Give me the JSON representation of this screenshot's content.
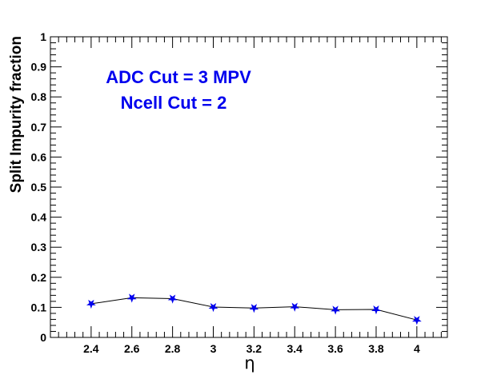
{
  "chart_data": {
    "type": "line",
    "title": "",
    "xlabel": "η",
    "ylabel": "Split Impurity fraction",
    "xlim": [
      2.2,
      4.15
    ],
    "ylim": [
      0,
      1
    ],
    "x_ticks": [
      "2.4",
      "2.6",
      "2.8",
      "3",
      "3.2",
      "3.4",
      "3.6",
      "3.8",
      "4"
    ],
    "y_ticks": [
      "0",
      "0.1",
      "0.2",
      "0.3",
      "0.4",
      "0.5",
      "0.6",
      "0.7",
      "0.8",
      "0.9",
      "1"
    ],
    "series": [
      {
        "x": [
          2.4,
          2.6,
          2.8,
          3.0,
          3.2,
          3.4,
          3.6,
          3.8,
          4.0
        ],
        "y": [
          0.112,
          0.132,
          0.129,
          0.101,
          0.098,
          0.102,
          0.092,
          0.093,
          0.058
        ],
        "marker_color": "#0000ee",
        "line_color": "#000000"
      }
    ],
    "annotations": [
      "ADC Cut = 3 MPV",
      "Ncell Cut = 2"
    ],
    "grid": false,
    "legend": "none"
  }
}
